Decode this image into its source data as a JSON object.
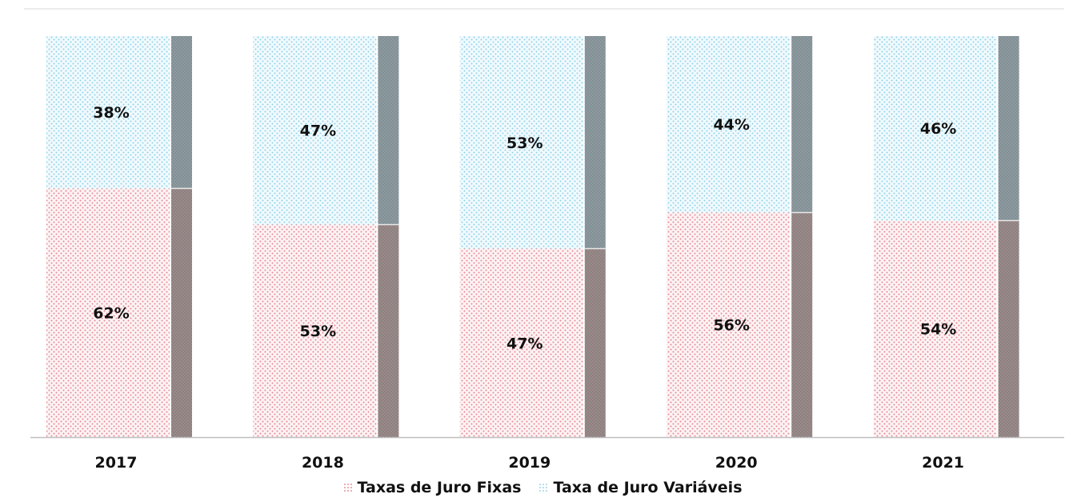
{
  "chart_data": {
    "type": "bar",
    "stacked": true,
    "title": "",
    "categories": [
      "2017",
      "2018",
      "2019",
      "2020",
      "2021"
    ],
    "series": [
      {
        "name": "Taxas de Juro Fixas",
        "values": [
          62,
          53,
          47,
          56,
          54
        ],
        "labels": [
          "62%",
          "53%",
          "47%",
          "56%",
          "54%"
        ],
        "color": "#e8a0a8",
        "shade": "#9c8c8c"
      },
      {
        "name": "Taxa de Juro Variáveis",
        "values": [
          38,
          47,
          53,
          44,
          46
        ],
        "labels": [
          "38%",
          "47%",
          "53%",
          "44%",
          "46%"
        ],
        "color": "#a8dcec",
        "shade": "#8c9ba1"
      }
    ],
    "ylim": [
      0,
      100
    ],
    "xlabel": "",
    "ylabel": "",
    "grid": false,
    "legend_position": "bottom"
  }
}
